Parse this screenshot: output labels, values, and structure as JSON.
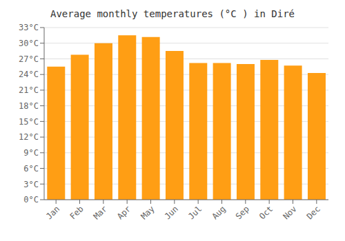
{
  "chart_data": {
    "type": "bar",
    "title": "Average monthly temperatures (°C ) in Diré",
    "categories": [
      "Jan",
      "Feb",
      "Mar",
      "Apr",
      "May",
      "Jun",
      "Jul",
      "Aug",
      "Sep",
      "Oct",
      "Nov",
      "Dec"
    ],
    "values": [
      25.5,
      27.8,
      30.0,
      31.5,
      31.2,
      28.5,
      26.2,
      26.2,
      26.0,
      26.8,
      25.7,
      24.3
    ],
    "color": "#ff9e14",
    "ylim": [
      0,
      33
    ],
    "yticks": [
      {
        "value": 0,
        "label": "0°C"
      },
      {
        "value": 3,
        "label": "3°C"
      },
      {
        "value": 6,
        "label": "6°C"
      },
      {
        "value": 9,
        "label": "9°C"
      },
      {
        "value": 12,
        "label": "12°C"
      },
      {
        "value": 15,
        "label": "15°C"
      },
      {
        "value": 18,
        "label": "18°C"
      },
      {
        "value": 21,
        "label": "21°C"
      },
      {
        "value": 24,
        "label": "24°C"
      },
      {
        "value": 27,
        "label": "27°C"
      },
      {
        "value": 30,
        "label": "30°C"
      },
      {
        "value": 33,
        "label": "33°C"
      }
    ],
    "grid": true
  }
}
